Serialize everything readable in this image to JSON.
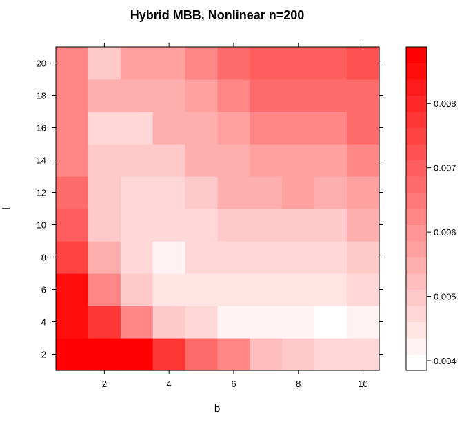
{
  "chart_data": {
    "type": "heatmap",
    "title": "Hybrid MBB, Nonlinear n=200",
    "xlabel": "b",
    "ylabel": "l",
    "x": [
      1,
      2,
      3,
      4,
      5,
      6,
      7,
      8,
      9,
      10
    ],
    "y": [
      2,
      4,
      6,
      8,
      10,
      12,
      14,
      16,
      18,
      20
    ],
    "xlim": [
      0.5,
      10.5
    ],
    "ylim": [
      1,
      21
    ],
    "x_ticks": [
      2,
      4,
      6,
      8,
      10
    ],
    "y_ticks": [
      2,
      4,
      6,
      8,
      10,
      12,
      14,
      16,
      18,
      20
    ],
    "values": [
      [
        0.00885,
        0.00865,
        0.00865,
        0.0077,
        0.0068,
        0.0063,
        0.0053,
        0.00505,
        0.0048,
        0.0048
      ],
      [
        0.00845,
        0.0077,
        0.00615,
        0.005,
        0.0048,
        0.00435,
        0.00435,
        0.00435,
        0.0039,
        0.0043
      ],
      [
        0.00855,
        0.0063,
        0.005,
        0.0044,
        0.0044,
        0.0044,
        0.0044,
        0.0044,
        0.0044,
        0.0047
      ],
      [
        0.0076,
        0.0054,
        0.0048,
        0.0043,
        0.0047,
        0.0047,
        0.0047,
        0.0047,
        0.0047,
        0.0051
      ],
      [
        0.0071,
        0.0051,
        0.0047,
        0.0047,
        0.0047,
        0.0051,
        0.0051,
        0.0051,
        0.0051,
        0.0054
      ],
      [
        0.0067,
        0.0051,
        0.0047,
        0.0047,
        0.0051,
        0.0054,
        0.0054,
        0.0058,
        0.0054,
        0.0058
      ],
      [
        0.0063,
        0.0051,
        0.0051,
        0.0051,
        0.0054,
        0.0054,
        0.0058,
        0.0058,
        0.0058,
        0.0063
      ],
      [
        0.0063,
        0.0047,
        0.0047,
        0.0054,
        0.0054,
        0.0058,
        0.0063,
        0.0063,
        0.0063,
        0.0067
      ],
      [
        0.0063,
        0.0054,
        0.0054,
        0.0054,
        0.0058,
        0.0063,
        0.0067,
        0.0067,
        0.0067,
        0.0067
      ],
      [
        0.0063,
        0.0051,
        0.0058,
        0.0058,
        0.0063,
        0.0067,
        0.0071,
        0.0071,
        0.0071,
        0.0073
      ]
    ],
    "colorbar": {
      "min": 0.00385,
      "max": 0.00888,
      "levels": 20,
      "ticks": [
        0.004,
        0.005,
        0.006,
        0.007,
        0.008
      ],
      "tick_labels": [
        "0.004",
        "0.005",
        "0.006",
        "0.007",
        "0.008"
      ],
      "low_color": "#ffffff",
      "high_color": "#ff0000"
    },
    "grid": false,
    "legend": "right colorbar"
  }
}
